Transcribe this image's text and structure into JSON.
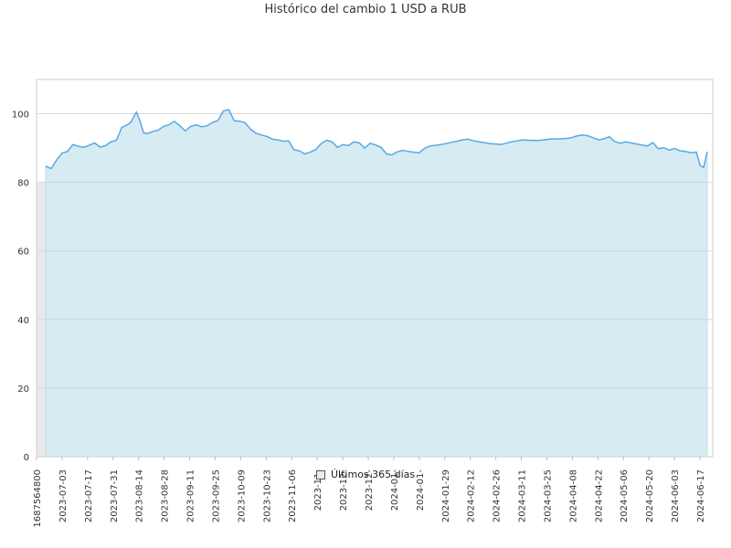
{
  "chart_data": {
    "type": "area",
    "title": "Histórico del cambio 1 USD a RUB",
    "xlabel": "",
    "ylabel": "",
    "ylim": [
      0,
      110
    ],
    "yticks": [
      0,
      20,
      40,
      60,
      80,
      100
    ],
    "grid": true,
    "legend_position": "bottom",
    "colors": {
      "line": "#5aa9e6",
      "fill": "#add8e6",
      "band": "#e8e8e8"
    },
    "x_ticks": [
      "1687564800",
      "2023-07-03",
      "2023-07-17",
      "2023-07-31",
      "2023-08-14",
      "2023-08-28",
      "2023-09-11",
      "2023-09-25",
      "2023-10-09",
      "2023-10-23",
      "2023-11-06",
      "2023-11-",
      "2023-12-",
      "2023-12-",
      "2024-01-",
      "2024-01-",
      "2024-01-29",
      "2024-02-12",
      "2024-02-26",
      "2024-03-11",
      "2024-03-25",
      "2024-04-08",
      "2024-04-22",
      "2024-05-06",
      "2024-05-20",
      "2024-06-03",
      "2024-06-17"
    ],
    "series": [
      {
        "name": "Últimos 365 días",
        "x": [
          "2023-06-24",
          "2023-06-27",
          "2023-06-30",
          "2023-07-03",
          "2023-07-06",
          "2023-07-09",
          "2023-07-12",
          "2023-07-15",
          "2023-07-18",
          "2023-07-21",
          "2023-07-24",
          "2023-07-27",
          "2023-07-30",
          "2023-08-02",
          "2023-08-05",
          "2023-08-08",
          "2023-08-10",
          "2023-08-13",
          "2023-08-15",
          "2023-08-17",
          "2023-08-19",
          "2023-08-22",
          "2023-08-25",
          "2023-08-28",
          "2023-08-31",
          "2023-09-03",
          "2023-09-06",
          "2023-09-09",
          "2023-09-12",
          "2023-09-15",
          "2023-09-18",
          "2023-09-21",
          "2023-09-24",
          "2023-09-27",
          "2023-09-30",
          "2023-10-03",
          "2023-10-06",
          "2023-10-09",
          "2023-10-12",
          "2023-10-15",
          "2023-10-18",
          "2023-10-21",
          "2023-10-24",
          "2023-10-27",
          "2023-10-30",
          "2023-11-02",
          "2023-11-05",
          "2023-11-08",
          "2023-11-11",
          "2023-11-14",
          "2023-11-17",
          "2023-11-20",
          "2023-11-23",
          "2023-11-26",
          "2023-11-29",
          "2023-12-02",
          "2023-12-05",
          "2023-12-08",
          "2023-12-11",
          "2023-12-14",
          "2023-12-17",
          "2023-12-20",
          "2023-12-23",
          "2023-12-26",
          "2023-12-29",
          "2024-01-01",
          "2024-01-04",
          "2024-01-07",
          "2024-01-10",
          "2024-01-13",
          "2024-01-16",
          "2024-01-19",
          "2024-01-22",
          "2024-01-25",
          "2024-01-28",
          "2024-01-31",
          "2024-02-03",
          "2024-02-06",
          "2024-02-09",
          "2024-02-12",
          "2024-02-15",
          "2024-02-18",
          "2024-02-21",
          "2024-02-24",
          "2024-02-27",
          "2024-03-01",
          "2024-03-04",
          "2024-03-07",
          "2024-03-10",
          "2024-03-13",
          "2024-03-16",
          "2024-03-19",
          "2024-03-22",
          "2024-03-25",
          "2024-03-28",
          "2024-03-31",
          "2024-04-03",
          "2024-04-06",
          "2024-04-09",
          "2024-04-12",
          "2024-04-15",
          "2024-04-18",
          "2024-04-21",
          "2024-04-24",
          "2024-04-27",
          "2024-04-30",
          "2024-05-03",
          "2024-05-06",
          "2024-05-09",
          "2024-05-12",
          "2024-05-15",
          "2024-05-18",
          "2024-05-21",
          "2024-05-24",
          "2024-05-27",
          "2024-05-30",
          "2024-06-02",
          "2024-06-05",
          "2024-06-08",
          "2024-06-11",
          "2024-06-14",
          "2024-06-17",
          "2024-06-19",
          "2024-06-21",
          "2024-06-23"
        ],
        "values": [
          84.7,
          84.0,
          86.5,
          88.5,
          89.0,
          91.0,
          90.5,
          90.2,
          90.8,
          91.5,
          90.3,
          90.7,
          91.8,
          92.3,
          96.0,
          96.8,
          97.5,
          100.5,
          98.0,
          94.5,
          94.2,
          94.8,
          95.2,
          96.3,
          96.8,
          97.8,
          96.5,
          95.0,
          96.3,
          96.8,
          96.2,
          96.5,
          97.5,
          98.0,
          100.8,
          101.2,
          98.0,
          97.8,
          97.4,
          95.5,
          94.3,
          93.8,
          93.4,
          92.6,
          92.4,
          92.0,
          92.1,
          89.5,
          89.2,
          88.3,
          88.8,
          89.6,
          91.3,
          92.3,
          91.8,
          90.2,
          91.0,
          90.7,
          91.8,
          91.5,
          90.0,
          91.4,
          90.9,
          90.2,
          88.3,
          88.0,
          88.9,
          89.3,
          89.0,
          88.8,
          88.6,
          89.9,
          90.6,
          90.8,
          91.0,
          91.3,
          91.7,
          92.0,
          92.4,
          92.6,
          92.1,
          91.8,
          91.6,
          91.3,
          91.2,
          91.0,
          91.4,
          91.8,
          92.1,
          92.4,
          92.3,
          92.2,
          92.2,
          92.4,
          92.6,
          92.6,
          92.7,
          92.8,
          93.0,
          93.5,
          93.8,
          93.6,
          93.0,
          92.4,
          92.7,
          93.3,
          91.9,
          91.4,
          91.8,
          91.5,
          91.2,
          90.9,
          90.6,
          91.6,
          89.8,
          90.1,
          89.4,
          89.9,
          89.2,
          89.0,
          88.6,
          88.8,
          85.0,
          84.3,
          88.9
        ]
      }
    ]
  }
}
